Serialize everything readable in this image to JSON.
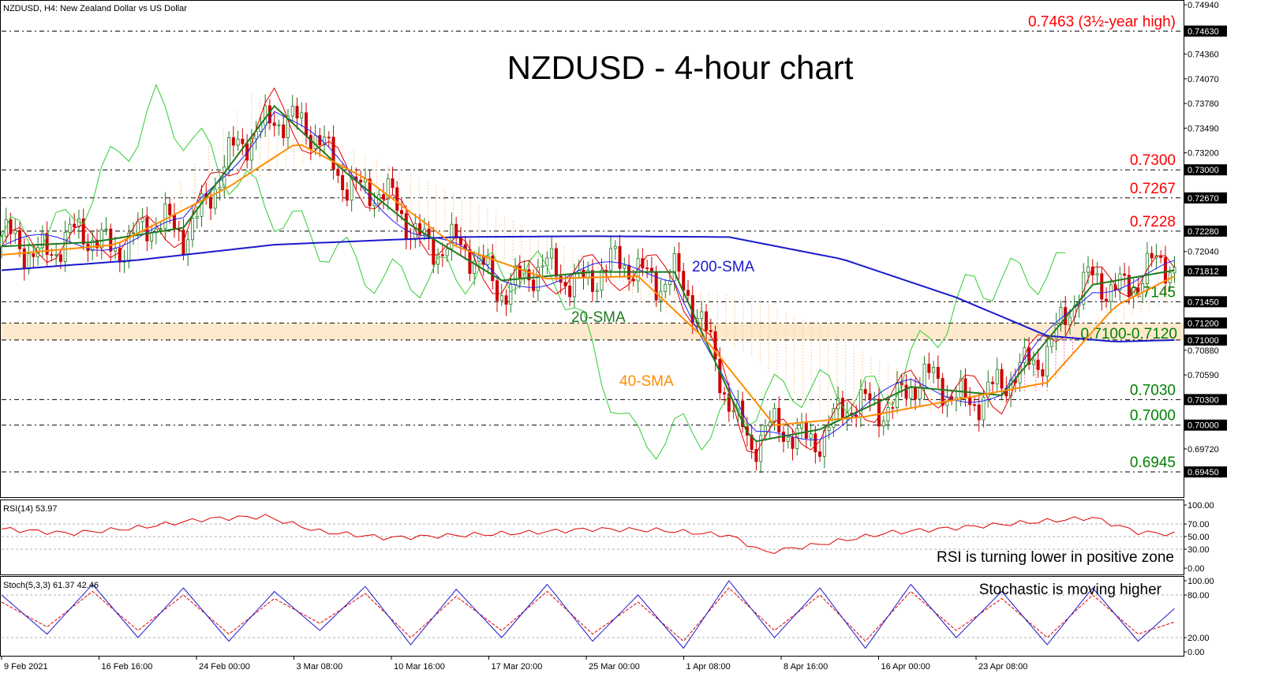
{
  "header": {
    "symbol_line": "NZDUSD, H4:  New Zealand Dollar vs US Dollar",
    "title": "NZDUSD - 4-hour chart"
  },
  "colors": {
    "resistance": "#ff0000",
    "support": "#008000",
    "sma200": "#1a1acc",
    "sma20": "#1f7a1f",
    "sma40": "#ff8c00",
    "fast_red": "#e00000",
    "fast_blue": "#2020ff",
    "chikou": "#33cc33",
    "cloud_pink": "#ff66aa",
    "cloud_tan": "#ffcc99",
    "zone_fill": "#fde9cc",
    "candle_up": "#1f7a1f",
    "candle_down": "#cc0000",
    "rsi_line": "#e00000",
    "stoch_main": "#1a1acc",
    "stoch_signal": "#e00000"
  },
  "chart_data": [
    {
      "type": "line",
      "pane": "price",
      "title": "NZDUSD - 4-hour chart",
      "ylim": [
        0.692,
        0.7494
      ],
      "x_ticks": [
        "9 Feb 2021",
        "16 Feb 16:00",
        "24 Feb 00:00",
        "3 Mar 08:00",
        "10 Mar 16:00",
        "17 Mar 20:00",
        "25 Mar 00:00",
        "1 Apr 08:00",
        "8 Apr 16:00",
        "16 Apr 00:00",
        "23 Apr 08:00"
      ],
      "y_ticks": [
        "0.74940",
        "0.74630",
        "0.74360",
        "0.74070",
        "0.73780",
        "0.73490",
        "0.73200",
        "0.73000",
        "0.72670",
        "0.72280",
        "0.72040",
        "0.71812",
        "0.71450",
        "0.71200",
        "0.71000",
        "0.70880",
        "0.70590",
        "0.70300",
        "0.70000",
        "0.69720",
        "0.69450"
      ],
      "highlighted_ticks": [
        "0.74630",
        "0.73000",
        "0.72670",
        "0.72280",
        "0.71812",
        "0.71450",
        "0.71200",
        "0.71000",
        "0.70300",
        "0.70000",
        "0.69450"
      ],
      "levels": [
        {
          "value": 0.7463,
          "label": "0.7463 (3½-year high)",
          "kind": "resistance"
        },
        {
          "value": 0.73,
          "label": "0.7300",
          "kind": "resistance"
        },
        {
          "value": 0.7267,
          "label": "0.7267",
          "kind": "resistance"
        },
        {
          "value": 0.7228,
          "label": "0.7228",
          "kind": "resistance"
        },
        {
          "value": 0.7145,
          "label": "0.7145",
          "kind": "support"
        },
        {
          "value": 0.703,
          "label": "0.7030",
          "kind": "support"
        },
        {
          "value": 0.7,
          "label": "0.7000",
          "kind": "support"
        },
        {
          "value": 0.6945,
          "label": "0.6945",
          "kind": "support"
        }
      ],
      "zone": {
        "from": 0.71,
        "to": 0.712,
        "label": "0.7100-0.7120"
      },
      "series": [
        {
          "name": "200-SMA",
          "x": [
            0,
            30,
            60,
            100,
            130,
            160,
            185,
            210,
            230,
            245,
            258
          ],
          "values": [
            0.7182,
            0.7194,
            0.7212,
            0.7221,
            0.7222,
            0.7221,
            0.7195,
            0.715,
            0.7105,
            0.7098,
            0.71
          ]
        },
        {
          "name": "20-SMA",
          "x": [
            0,
            20,
            40,
            60,
            75,
            90,
            110,
            130,
            148,
            165,
            180,
            200,
            220,
            240,
            258
          ],
          "values": [
            0.721,
            0.7215,
            0.7232,
            0.7375,
            0.73,
            0.7235,
            0.717,
            0.718,
            0.718,
            0.698,
            0.6995,
            0.7045,
            0.7035,
            0.7165,
            0.7182
          ]
        },
        {
          "name": "40-SMA",
          "x": [
            0,
            25,
            50,
            65,
            80,
            100,
            120,
            140,
            155,
            170,
            190,
            210,
            230,
            245,
            258
          ],
          "values": [
            0.72,
            0.7212,
            0.728,
            0.7332,
            0.729,
            0.721,
            0.7172,
            0.7175,
            0.71,
            0.7,
            0.701,
            0.703,
            0.705,
            0.714,
            0.7175
          ]
        }
      ]
    },
    {
      "type": "line",
      "pane": "rsi",
      "title": "RSI(14) 53.97",
      "ylim": [
        0,
        100
      ],
      "y_ticks": [
        "100.00",
        "70.00",
        "50.00",
        "30.00",
        "0.00"
      ],
      "series": [
        {
          "name": "RSI(14)",
          "x": [
            0,
            15,
            30,
            45,
            58,
            70,
            85,
            100,
            115,
            130,
            145,
            160,
            168,
            180,
            195,
            210,
            225,
            240,
            250,
            258
          ],
          "values": [
            62,
            55,
            64,
            78,
            82,
            58,
            48,
            52,
            56,
            62,
            60,
            52,
            25,
            38,
            56,
            64,
            72,
            80,
            57,
            54
          ]
        }
      ],
      "annotation": "RSI is turning lower in positive zone"
    },
    {
      "type": "line",
      "pane": "stochastic",
      "title": "Stoch(5,3,3) 61.37 42.46",
      "ylim": [
        0,
        100
      ],
      "y_ticks": [
        "100.00",
        "80.00",
        "20.00",
        "0.00"
      ],
      "series": [
        {
          "name": "Stoch(5,3,3)",
          "x": [
            0,
            10,
            20,
            30,
            40,
            50,
            60,
            70,
            80,
            90,
            100,
            110,
            120,
            130,
            140,
            150,
            160,
            170,
            180,
            190,
            200,
            210,
            220,
            230,
            240,
            250,
            258
          ],
          "values": [
            80,
            25,
            95,
            20,
            90,
            15,
            85,
            30,
            92,
            10,
            88,
            20,
            95,
            15,
            80,
            5,
            100,
            20,
            90,
            5,
            95,
            20,
            85,
            10,
            90,
            15,
            61
          ]
        },
        {
          "name": "Signal",
          "x": [
            0,
            10,
            20,
            30,
            40,
            50,
            60,
            70,
            80,
            90,
            100,
            110,
            120,
            130,
            140,
            150,
            160,
            170,
            180,
            190,
            200,
            210,
            220,
            230,
            240,
            250,
            258
          ],
          "values": [
            70,
            35,
            85,
            30,
            80,
            25,
            75,
            40,
            82,
            20,
            78,
            30,
            85,
            25,
            70,
            15,
            90,
            30,
            80,
            15,
            85,
            30,
            75,
            20,
            80,
            25,
            42
          ]
        }
      ],
      "annotation": "Stochastic is moving higher"
    }
  ],
  "labels": {
    "sma200": "200-SMA",
    "sma20": "20-SMA",
    "sma40": "40-SMA"
  }
}
